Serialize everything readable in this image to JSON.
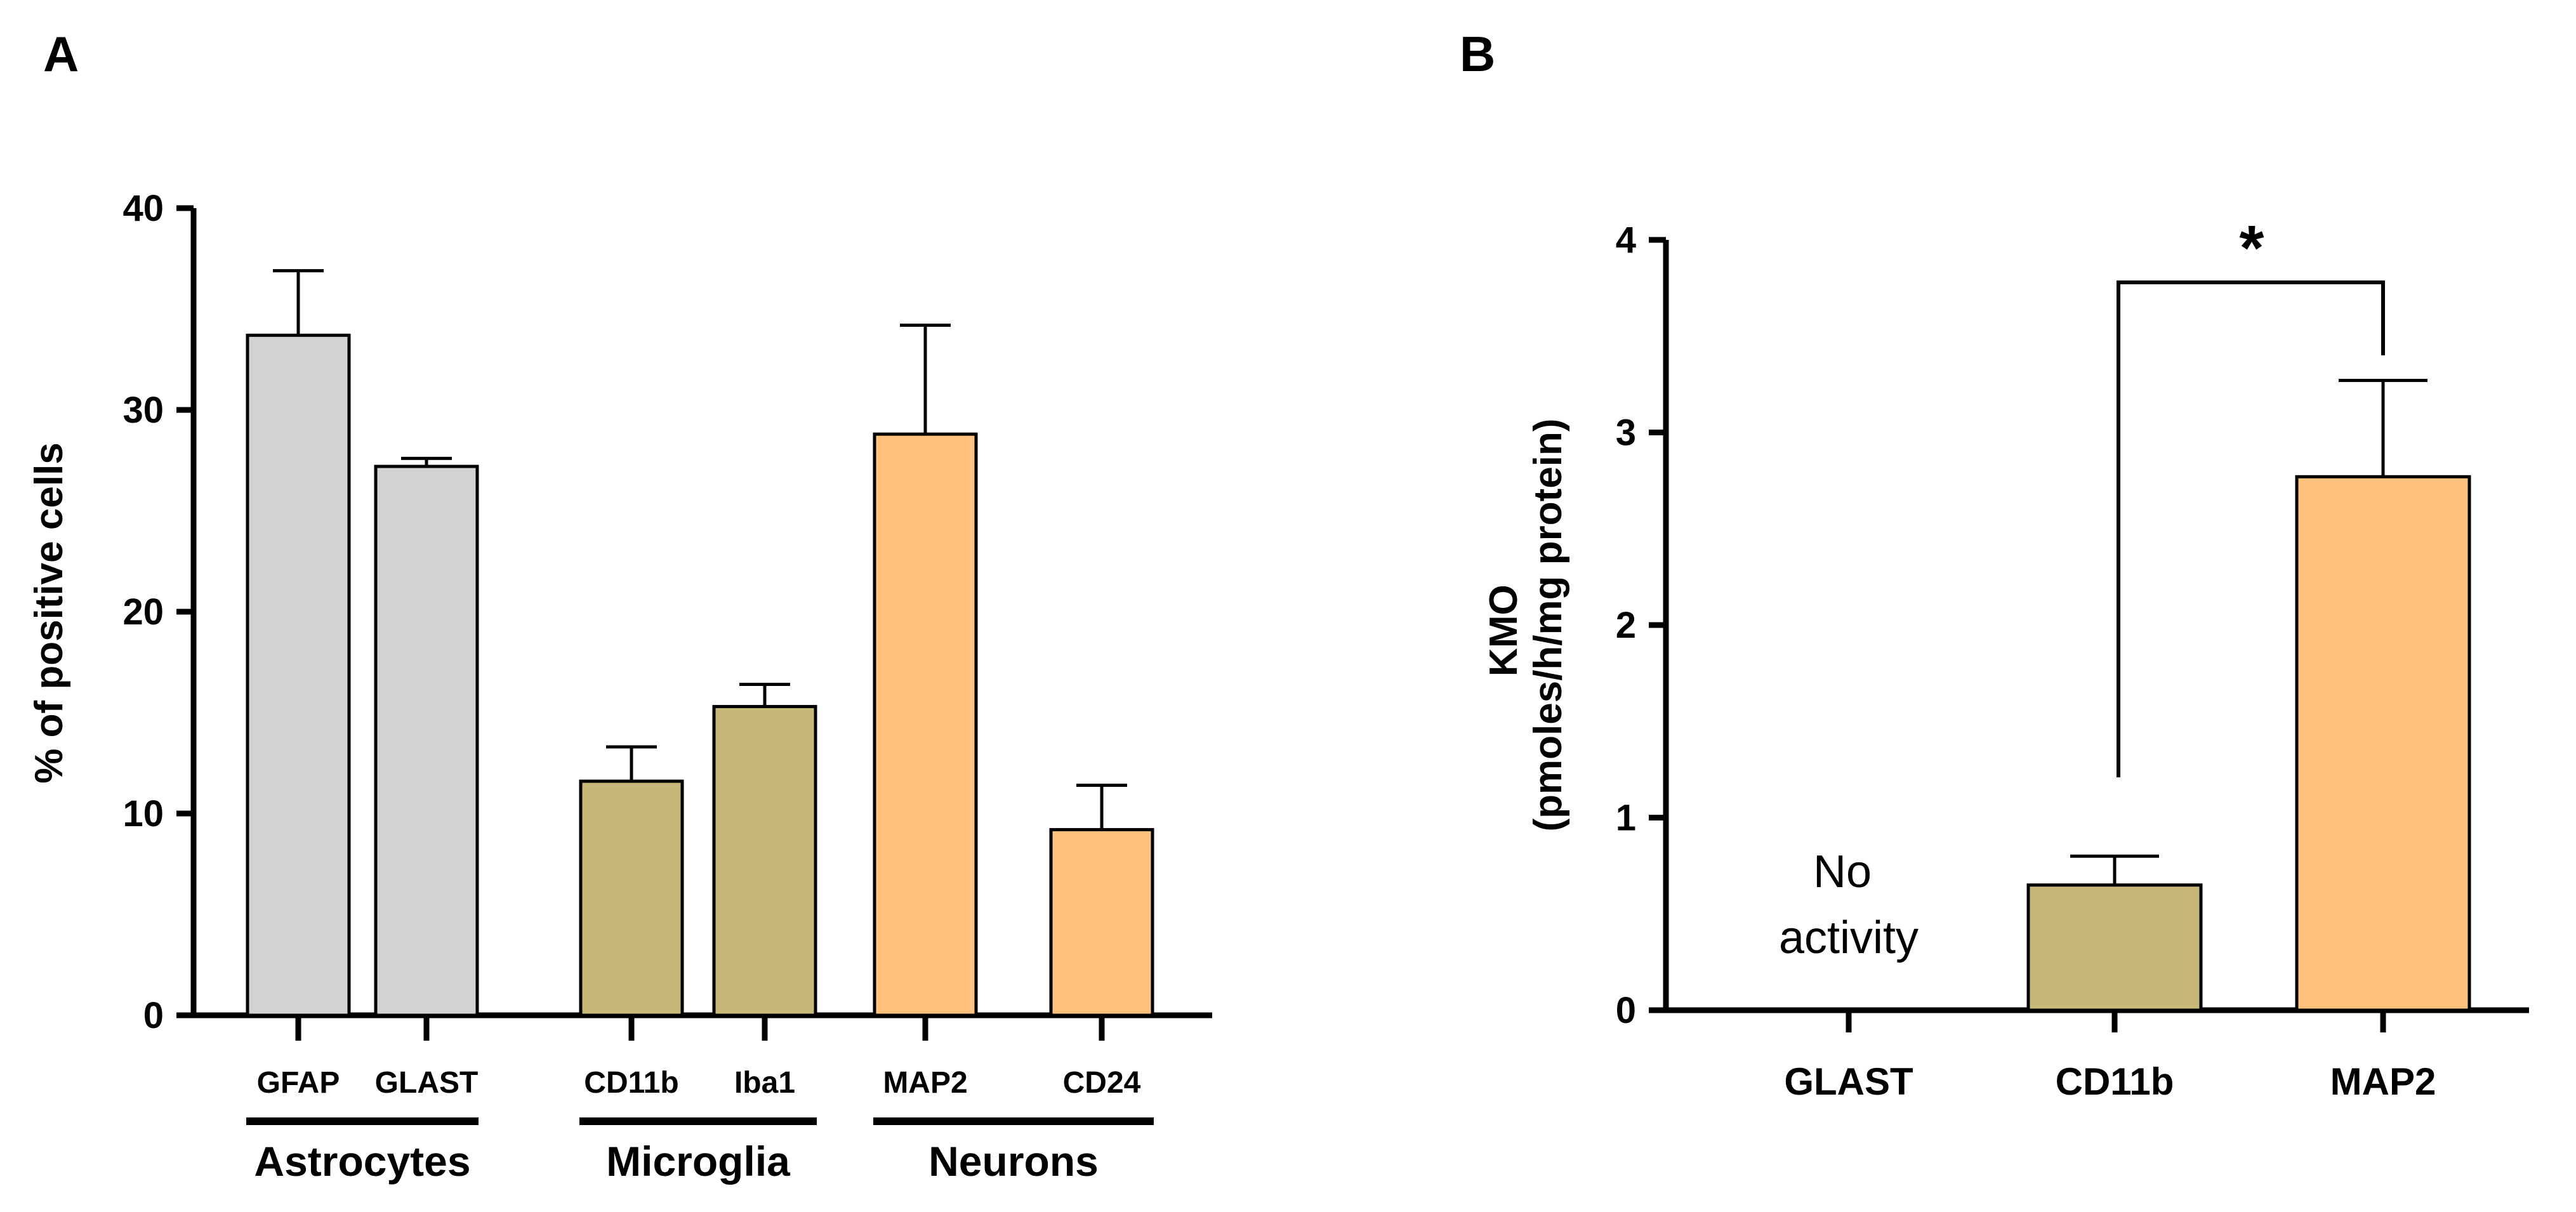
{
  "chart_data": [
    {
      "panel": "A",
      "type": "bar",
      "title": "",
      "xlabel": "",
      "ylabel": "% of positive cells",
      "ylim": [
        0,
        40
      ],
      "yticks": [
        "0",
        "10",
        "20",
        "30",
        "40"
      ],
      "categories": [
        "GFAP",
        "GLAST",
        "CD11b",
        "Iba1",
        "MAP2",
        "CD24"
      ],
      "values": [
        33.7,
        27.2,
        11.6,
        15.3,
        28.8,
        9.2
      ],
      "errors": [
        3.2,
        0.4,
        1.7,
        1.1,
        5.4,
        2.2
      ],
      "colors": [
        "#d3d3d3",
        "#d3d3d3",
        "#c7b87a",
        "#c7b87a",
        "#ffc37f",
        "#ffc37f"
      ],
      "groups": [
        {
          "label": "Astrocytes",
          "members": [
            0,
            1
          ]
        },
        {
          "label": "Microglia",
          "members": [
            2,
            3
          ]
        },
        {
          "label": "Neurons",
          "members": [
            4,
            5
          ]
        }
      ]
    },
    {
      "panel": "B",
      "type": "bar",
      "title": "",
      "xlabel": "",
      "ylabel": "KMO",
      "ylabel_line2": "(pmoles/h/mg protein)",
      "ylim": [
        0,
        4
      ],
      "yticks": [
        "0",
        "1",
        "2",
        "3",
        "4"
      ],
      "categories": [
        "GLAST",
        "CD11b",
        "MAP2"
      ],
      "values": [
        null,
        0.65,
        2.77
      ],
      "errors": [
        null,
        0.15,
        0.5
      ],
      "colors": [
        "#ffffff",
        "#c7b87a",
        "#ffc37f"
      ],
      "annotations": {
        "no_activity_line1": "No",
        "no_activity_line2": "activity",
        "significance": "*"
      }
    }
  ]
}
